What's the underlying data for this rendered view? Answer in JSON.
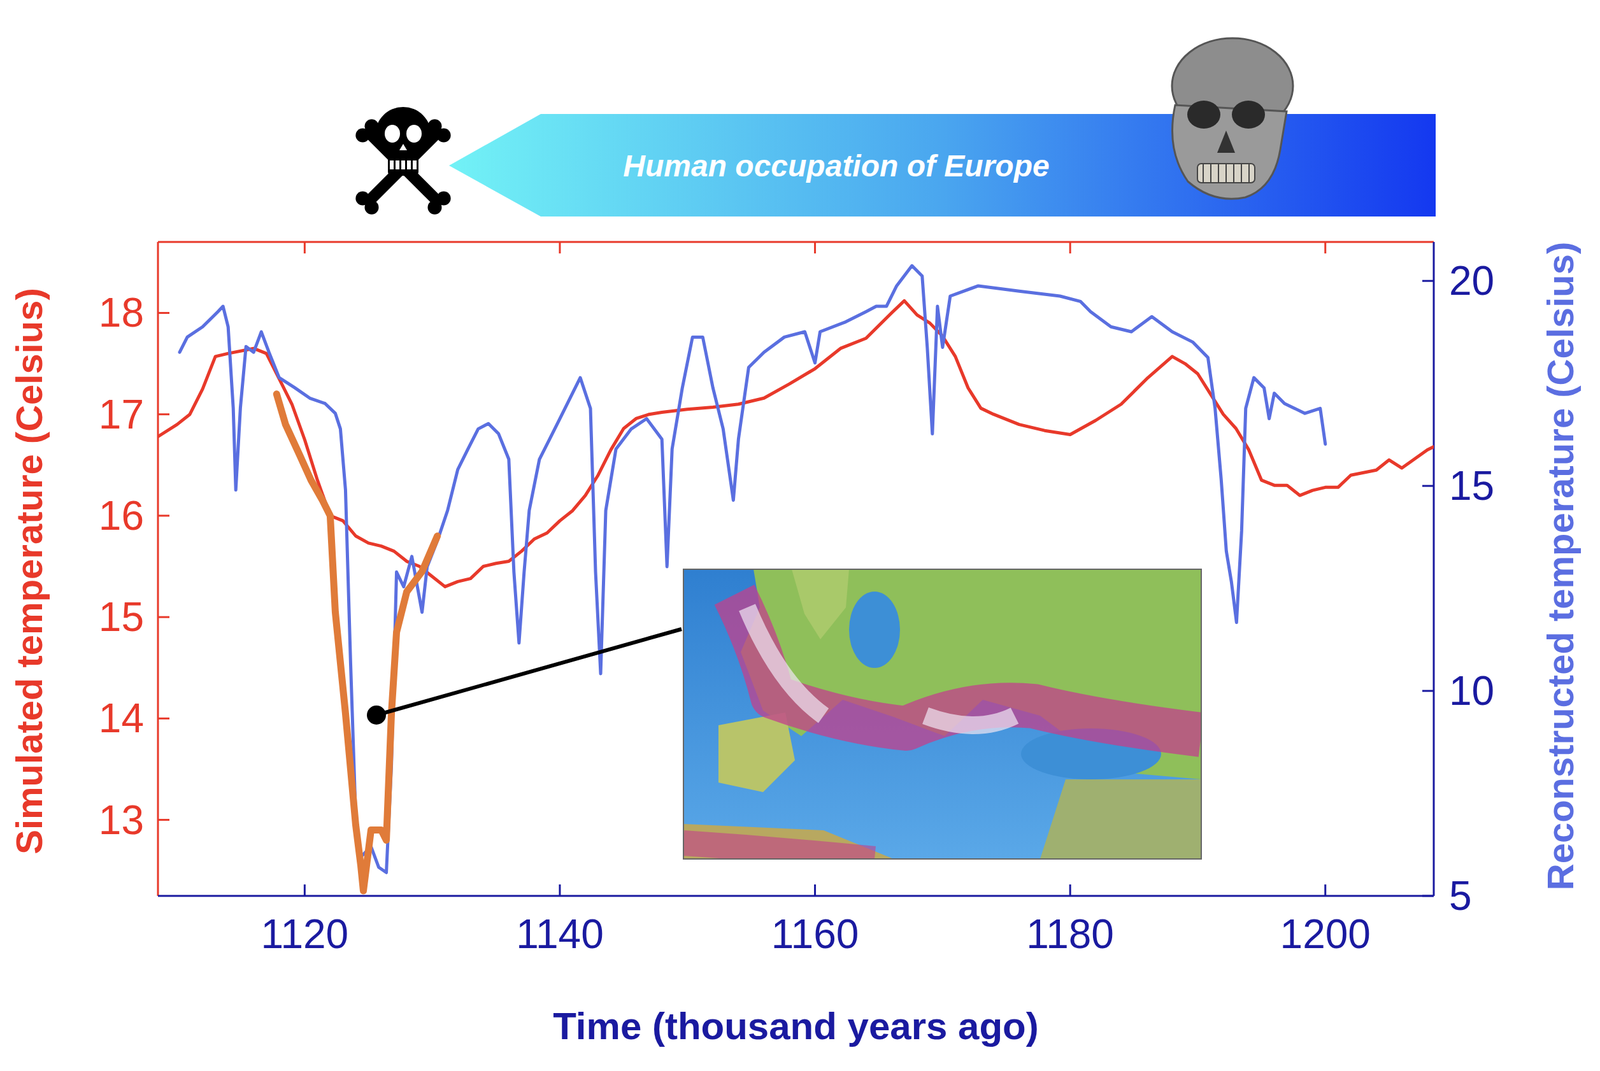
{
  "chart_data": {
    "type": "line",
    "x_label": "Time (thousand years ago)",
    "y_label": "Simulated temperature (Celsius)",
    "y2_label": "Reconstructed temperature (Celsius)",
    "annotations": [
      {
        "text": "Human occupation of Europe"
      }
    ],
    "xlim": [
      1108.5,
      1208.5
    ],
    "xticks": [
      1120,
      1140,
      1160,
      1180,
      1200
    ],
    "ylim": [
      12.25,
      18.7
    ],
    "yticks": [
      13,
      14,
      15,
      16,
      17,
      18
    ],
    "y2lim": [
      5,
      20.95
    ],
    "y2ticks": [
      5,
      10,
      15,
      20
    ],
    "grid": false,
    "series": [
      {
        "color": "#e8392a",
        "x": [
          1108.5,
          1110,
          1111,
          1112,
          1113,
          1114,
          1116,
          1117,
          1118,
          1119,
          1120,
          1121,
          1122,
          1123,
          1124,
          1125,
          1126,
          1127,
          1128,
          1129,
          1130,
          1131,
          1132,
          1133,
          1134,
          1135,
          1136,
          1137,
          1138,
          1139,
          1140,
          1141,
          1142,
          1143,
          1144,
          1145,
          1146,
          1147,
          1148,
          1150,
          1152,
          1154,
          1156,
          1158,
          1160,
          1162,
          1164,
          1166,
          1167,
          1168,
          1169,
          1170,
          1171,
          1172,
          1173,
          1174,
          1176,
          1178,
          1180,
          1182,
          1184,
          1186,
          1188,
          1189,
          1190,
          1191,
          1192,
          1193,
          1194,
          1195,
          1196,
          1197,
          1198,
          1199,
          1200,
          1201,
          1202,
          1204,
          1205,
          1206,
          1208,
          1208.5
        ],
        "values": [
          16.78,
          16.9,
          17.0,
          17.25,
          17.57,
          17.6,
          17.65,
          17.6,
          17.35,
          17.1,
          16.75,
          16.35,
          16.0,
          15.95,
          15.8,
          15.73,
          15.7,
          15.65,
          15.55,
          15.5,
          15.4,
          15.3,
          15.35,
          15.38,
          15.5,
          15.53,
          15.55,
          15.65,
          15.77,
          15.83,
          15.95,
          16.05,
          16.2,
          16.4,
          16.65,
          16.86,
          16.96,
          17.0,
          17.02,
          17.05,
          17.07,
          17.1,
          17.16,
          17.3,
          17.45,
          17.65,
          17.75,
          18.0,
          18.12,
          17.98,
          17.9,
          17.77,
          17.57,
          17.26,
          17.06,
          17.0,
          16.9,
          16.84,
          16.8,
          16.94,
          17.1,
          17.35,
          17.57,
          17.5,
          17.4,
          17.2,
          17.0,
          16.86,
          16.65,
          16.35,
          16.3,
          16.3,
          16.2,
          16.25,
          16.28,
          16.28,
          16.4,
          16.45,
          16.55,
          16.47,
          16.65,
          16.68
        ]
      },
      {
        "color": "#e07b39",
        "x": [
          1117.8,
          1118.5,
          1119.6,
          1120.5,
          1121.4,
          1122,
          1122.4,
          1123.2,
          1124,
          1124.4,
          1124.6,
          1125.2,
          1126,
          1126.4,
          1126.8,
          1127.2,
          1128,
          1129.2,
          1130.4
        ],
        "values": [
          17.2,
          16.9,
          16.6,
          16.35,
          16.15,
          16.0,
          15.05,
          14.05,
          12.95,
          12.55,
          12.3,
          12.9,
          12.9,
          12.8,
          14.05,
          14.85,
          15.25,
          15.45,
          15.8
        ]
      },
      {
        "color": "#5a6fe0",
        "axis": "y2",
        "x": [
          1110.2,
          1110.8,
          1112,
          1113.2,
          1113.6,
          1114,
          1114.4,
          1114.6,
          1114.96,
          1115.4,
          1116,
          1116.6,
          1117.2,
          1118,
          1119.2,
          1120.4,
          1121.6,
          1122.4,
          1122.8,
          1123.2,
          1123.6,
          1124,
          1124.4,
          1125.2,
          1125.8,
          1126.4,
          1126.8,
          1127.2,
          1127.76,
          1128.4,
          1129.2,
          1129.6,
          1130.4,
          1131.2,
          1132,
          1132.8,
          1133.6,
          1134.4,
          1135.2,
          1136,
          1136.4,
          1136.8,
          1137.2,
          1137.6,
          1138.4,
          1139.2,
          1140,
          1140.8,
          1141.6,
          1142.4,
          1142.8,
          1143.2,
          1143.6,
          1144.4,
          1145.6,
          1146.8,
          1148,
          1148.4,
          1148.8,
          1149.6,
          1150.4,
          1151.2,
          1152,
          1152.8,
          1153.6,
          1154,
          1154.8,
          1156,
          1157.6,
          1159.2,
          1160,
          1160.4,
          1162.4,
          1164,
          1164.8,
          1165.6,
          1166.4,
          1167.6,
          1168.4,
          1168.8,
          1169.2,
          1169.6,
          1170,
          1170.6,
          1172.8,
          1176,
          1179.2,
          1180.8,
          1181.6,
          1183.2,
          1184.8,
          1186.4,
          1188,
          1189.6,
          1190.8,
          1191.36,
          1191.84,
          1192.24,
          1192.64,
          1193.04,
          1193.44,
          1193.76,
          1194.4,
          1195.2,
          1195.6,
          1196,
          1196.8,
          1197.6,
          1198.4,
          1199.6,
          1200
        ],
        "values": [
          18.26,
          18.63,
          18.88,
          19.25,
          19.38,
          18.88,
          16.9,
          14.9,
          16.9,
          18.4,
          18.26,
          18.76,
          18.26,
          17.64,
          17.4,
          17.14,
          17.01,
          16.77,
          16.39,
          14.9,
          10.67,
          6.94,
          5.95,
          6.2,
          5.7,
          5.57,
          8.18,
          12.9,
          12.54,
          13.28,
          11.92,
          13.03,
          13.66,
          14.4,
          15.4,
          15.9,
          16.39,
          16.52,
          16.27,
          15.65,
          12.9,
          11.17,
          12.9,
          14.4,
          15.65,
          16.14,
          16.64,
          17.14,
          17.64,
          16.89,
          12.9,
          10.42,
          14.4,
          15.9,
          16.39,
          16.64,
          16.14,
          13.03,
          15.9,
          17.39,
          18.63,
          18.63,
          17.39,
          16.39,
          14.65,
          16.14,
          17.89,
          18.26,
          18.63,
          18.76,
          18.0,
          18.76,
          19.0,
          19.25,
          19.38,
          19.38,
          19.88,
          20.37,
          20.12,
          18.38,
          16.27,
          19.38,
          18.38,
          19.63,
          19.88,
          19.75,
          19.63,
          19.5,
          19.25,
          18.88,
          18.76,
          19.13,
          18.76,
          18.51,
          18.13,
          16.89,
          15.15,
          13.41,
          12.66,
          11.67,
          13.9,
          16.89,
          17.64,
          17.39,
          16.64,
          17.26,
          17.01,
          16.89,
          16.77,
          16.89,
          16.02
        ]
      }
    ]
  }
}
